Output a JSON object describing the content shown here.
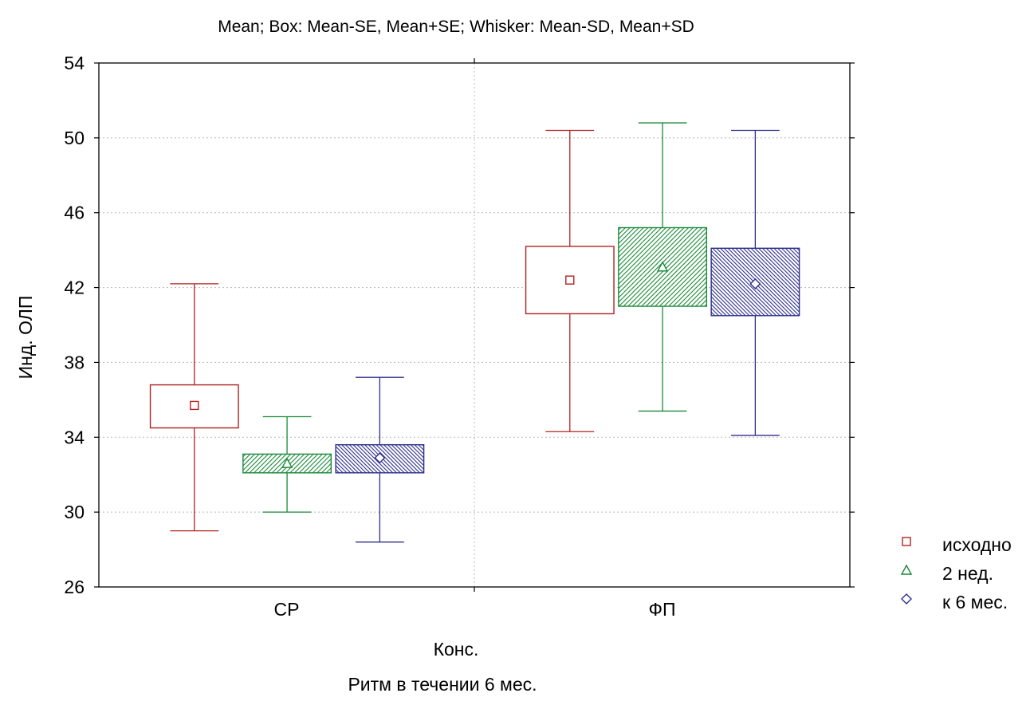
{
  "chart_data": {
    "type": "box",
    "title": "Mean; Box: Mean-SE, Mean+SE; Whisker: Mean-SD, Mean+SD",
    "ylabel": "Инд. ОЛП",
    "xlabel": "Конс.",
    "subtitle": "Ритм в  течении 6 мес.",
    "categories": [
      "СР",
      "ФП"
    ],
    "ylim": [
      26,
      54
    ],
    "yticks": [
      26,
      30,
      34,
      38,
      42,
      46,
      50,
      54
    ],
    "grid": true,
    "legend_position": "right",
    "series": [
      {
        "name": "исходно",
        "color": "#b22222",
        "marker": "square",
        "fill": "none",
        "points": [
          {
            "category": "СР",
            "mean": 35.7,
            "box_low": 34.5,
            "box_high": 36.8,
            "whisker_low": 29.0,
            "whisker_high": 42.2
          },
          {
            "category": "ФП",
            "mean": 42.4,
            "box_low": 40.6,
            "box_high": 44.2,
            "whisker_low": 34.3,
            "whisker_high": 50.4
          }
        ]
      },
      {
        "name": "2 нед.",
        "color": "#1a8a3a",
        "marker": "triangle",
        "fill": "hatch",
        "points": [
          {
            "category": "СР",
            "mean": 32.6,
            "box_low": 32.1,
            "box_high": 33.1,
            "whisker_low": 30.0,
            "whisker_high": 35.1
          },
          {
            "category": "ФП",
            "mean": 43.1,
            "box_low": 41.0,
            "box_high": 45.2,
            "whisker_low": 35.4,
            "whisker_high": 50.8
          }
        ]
      },
      {
        "name": "к 6 мес.",
        "color": "#2e2e8c",
        "marker": "diamond",
        "fill": "hatch-dense",
        "points": [
          {
            "category": "СР",
            "mean": 32.9,
            "box_low": 32.1,
            "box_high": 33.6,
            "whisker_low": 28.4,
            "whisker_high": 37.2
          },
          {
            "category": "ФП",
            "mean": 42.2,
            "box_low": 40.5,
            "box_high": 44.1,
            "whisker_low": 34.1,
            "whisker_high": 50.4
          }
        ]
      }
    ]
  }
}
